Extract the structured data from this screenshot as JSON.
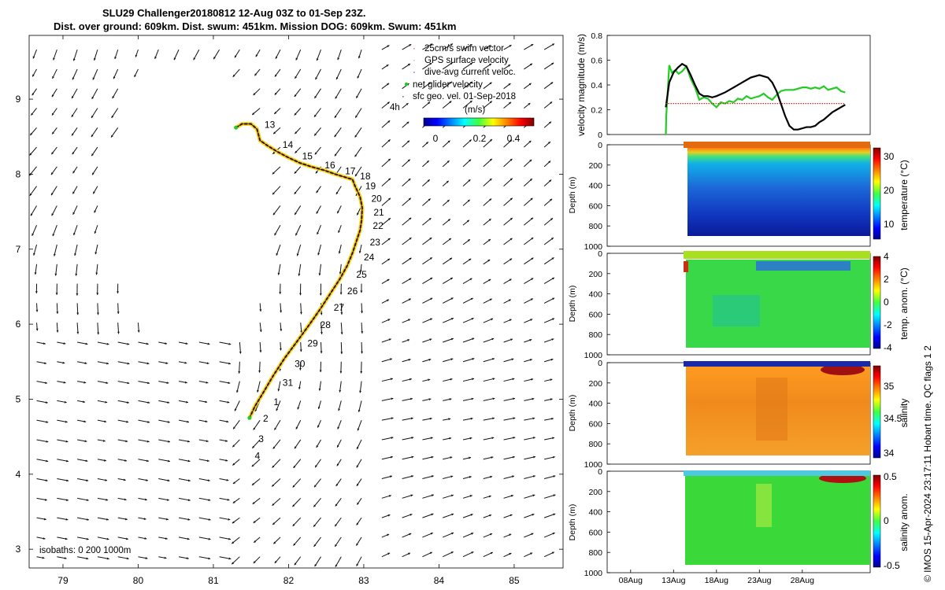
{
  "title": {
    "line1": "SLU29 Challenger20180812 12-Aug 03Z to 01-Sep 23Z.",
    "line2": "Dist. over ground: 609km. Dist. swum: 451km. Mission DOG: 609km. Swum: 451km"
  },
  "side_label": "© IMOS 15-Apr-2024 23:17:11 Hobart time. QC flags 1  2",
  "chart_data": [
    {
      "type": "scatter",
      "name": "track-map",
      "x_ticks": [
        "79",
        "80",
        "81",
        "82",
        "83",
        "84",
        "85"
      ],
      "y_ticks": [
        "3",
        "4",
        "5",
        "6",
        "7",
        "8",
        "9"
      ],
      "xlim": [
        78.55,
        85.65
      ],
      "ylim": [
        2.75,
        9.85
      ],
      "legend": [
        {
          "label": "25cm/s swim vector",
          "color": "#d62728"
        },
        {
          "label": "GPS surface velocity",
          "color": "#c080c0"
        },
        {
          "label": "dive-avg current veloc.",
          "color": "#1f1fb0"
        },
        {
          "label": "net glider velocity",
          "color": "#22cc22"
        },
        {
          "label": "sfc geo. vel. 01-Sep-2018",
          "color": "#000000"
        }
      ],
      "arrow_scale_label": "4h",
      "colorbar": {
        "label": "(m/s)",
        "ticks": [
          "0",
          "0.2",
          "0.4"
        ],
        "range": [
          0,
          0.5
        ]
      },
      "isobaths_label": "isobaths: 0   200  1000m",
      "track": [
        [
          81.3,
          8.62
        ],
        [
          81.38,
          8.67
        ],
        [
          81.5,
          8.67
        ],
        [
          81.58,
          8.6
        ],
        [
          81.62,
          8.45
        ],
        [
          81.72,
          8.38
        ],
        [
          81.85,
          8.3
        ],
        [
          82.0,
          8.22
        ],
        [
          82.15,
          8.15
        ],
        [
          82.3,
          8.1
        ],
        [
          82.48,
          8.05
        ],
        [
          82.62,
          8.0
        ],
        [
          82.75,
          7.96
        ],
        [
          82.85,
          7.93
        ],
        [
          82.88,
          7.85
        ],
        [
          82.95,
          7.7
        ],
        [
          82.98,
          7.55
        ],
        [
          82.97,
          7.38
        ],
        [
          82.95,
          7.25
        ],
        [
          82.9,
          7.1
        ],
        [
          82.85,
          6.95
        ],
        [
          82.78,
          6.78
        ],
        [
          82.68,
          6.6
        ],
        [
          82.55,
          6.4
        ],
        [
          82.42,
          6.2
        ],
        [
          82.28,
          6.0
        ],
        [
          82.12,
          5.78
        ],
        [
          81.95,
          5.55
        ],
        [
          81.8,
          5.32
        ],
        [
          81.67,
          5.1
        ],
        [
          81.55,
          4.9
        ],
        [
          81.48,
          4.75
        ]
      ],
      "day_labels": [
        {
          "t": "13",
          "lon": 81.68,
          "lat": 8.62
        },
        {
          "t": "14",
          "lon": 81.92,
          "lat": 8.35
        },
        {
          "t": "15",
          "lon": 82.18,
          "lat": 8.2
        },
        {
          "t": "16",
          "lon": 82.48,
          "lat": 8.08
        },
        {
          "t": "17",
          "lon": 82.75,
          "lat": 8.0
        },
        {
          "t": "18",
          "lon": 82.95,
          "lat": 7.93
        },
        {
          "t": "19",
          "lon": 83.02,
          "lat": 7.8
        },
        {
          "t": "20",
          "lon": 83.1,
          "lat": 7.63
        },
        {
          "t": "21",
          "lon": 83.13,
          "lat": 7.45
        },
        {
          "t": "22",
          "lon": 83.12,
          "lat": 7.27
        },
        {
          "t": "23",
          "lon": 83.08,
          "lat": 7.05
        },
        {
          "t": "24",
          "lon": 83.0,
          "lat": 6.85
        },
        {
          "t": "25",
          "lon": 82.9,
          "lat": 6.62
        },
        {
          "t": "26",
          "lon": 82.78,
          "lat": 6.4
        },
        {
          "t": "27",
          "lon": 82.6,
          "lat": 6.18
        },
        {
          "t": "28",
          "lon": 82.42,
          "lat": 5.95
        },
        {
          "t": "29",
          "lon": 82.25,
          "lat": 5.7
        },
        {
          "t": "30",
          "lon": 82.08,
          "lat": 5.43
        },
        {
          "t": "31",
          "lon": 81.92,
          "lat": 5.18
        },
        {
          "t": "1",
          "lon": 81.8,
          "lat": 4.92
        },
        {
          "t": "2",
          "lon": 81.66,
          "lat": 4.7
        },
        {
          "t": "3",
          "lon": 81.6,
          "lat": 4.43
        },
        {
          "t": "4",
          "lon": 81.55,
          "lat": 4.2
        }
      ]
    },
    {
      "type": "line",
      "name": "velocity-magnitude",
      "ylabel": "velocity magnitude (m/s)",
      "ylim": [
        0,
        0.8
      ],
      "y_ticks": [
        "0",
        "0.2",
        "0.4",
        "0.6",
        "0.8"
      ],
      "series": [
        {
          "name": "net glider velocity",
          "color": "#22cc22",
          "x": [
            12.1,
            12.15,
            12.5,
            12.8,
            13.2,
            13.6,
            14.0,
            14.5,
            15.0,
            15.5,
            16.0,
            16.5,
            17.0,
            17.5,
            18.0,
            18.5,
            19.0,
            19.5,
            20.0,
            20.5,
            21.0,
            21.5,
            22.0,
            22.5,
            23.0,
            23.5,
            24.0,
            24.5,
            25.0,
            25.5,
            26.0,
            26.5,
            27.0,
            27.5,
            28.0,
            28.5,
            29.0,
            29.5,
            30.0,
            30.5,
            31.0,
            31.5,
            32.0,
            32.5,
            33.0
          ],
          "y": [
            0.0,
            0.15,
            0.56,
            0.5,
            0.52,
            0.49,
            0.51,
            0.55,
            0.45,
            0.38,
            0.28,
            0.3,
            0.29,
            0.25,
            0.22,
            0.26,
            0.25,
            0.27,
            0.26,
            0.29,
            0.28,
            0.31,
            0.29,
            0.3,
            0.31,
            0.33,
            0.3,
            0.28,
            0.32,
            0.35,
            0.36,
            0.36,
            0.36,
            0.37,
            0.38,
            0.38,
            0.37,
            0.38,
            0.37,
            0.39,
            0.36,
            0.37,
            0.38,
            0.35,
            0.34
          ]
        },
        {
          "name": "sfc geo. vel.",
          "color": "#000000",
          "x": [
            12.1,
            12.5,
            13.0,
            13.5,
            14.0,
            14.5,
            15.0,
            15.5,
            16.0,
            16.5,
            17.0,
            17.5,
            18.0,
            19.0,
            20.0,
            21.0,
            22.0,
            23.0,
            24.0,
            24.5,
            25.0,
            25.5,
            26.0,
            26.5,
            27.0,
            27.5,
            28.0,
            28.5,
            29.0,
            29.5,
            30.0,
            30.5,
            31.0,
            31.5,
            32.0,
            32.5,
            33.0
          ],
          "y": [
            0.22,
            0.42,
            0.5,
            0.54,
            0.57,
            0.55,
            0.48,
            0.4,
            0.33,
            0.31,
            0.31,
            0.3,
            0.31,
            0.34,
            0.38,
            0.42,
            0.46,
            0.48,
            0.46,
            0.42,
            0.35,
            0.25,
            0.15,
            0.07,
            0.04,
            0.04,
            0.05,
            0.06,
            0.06,
            0.07,
            0.1,
            0.12,
            0.15,
            0.18,
            0.2,
            0.22,
            0.24
          ]
        },
        {
          "name": "25cm/s swim",
          "color": "#d62728",
          "x": [
            12.1,
            33.0
          ],
          "y": [
            0.25,
            0.25
          ]
        }
      ]
    },
    {
      "type": "heatmap",
      "name": "temperature",
      "ylabel": "Depth (m)",
      "clabel": "temperature (°C)",
      "ylim": [
        1000,
        0
      ],
      "y_ticks": [
        "0",
        "200",
        "400",
        "600",
        "800",
        "1000"
      ],
      "cbar_ticks": [
        "10",
        "20",
        "30"
      ],
      "crange": [
        5,
        32
      ]
    },
    {
      "type": "heatmap",
      "name": "temp-anomaly",
      "ylabel": "Depth (m)",
      "clabel": "temp. anom. (°C)",
      "ylim": [
        1000,
        0
      ],
      "y_ticks": [
        "0",
        "200",
        "400",
        "600",
        "800",
        "1000"
      ],
      "cbar_ticks": [
        "4",
        "2",
        "0",
        "-2",
        "-4"
      ],
      "crange": [
        -4,
        4
      ]
    },
    {
      "type": "heatmap",
      "name": "salinity",
      "ylabel": "Depth (m)",
      "clabel": "salinity",
      "ylim": [
        1000,
        0
      ],
      "y_ticks": [
        "0",
        "200",
        "400",
        "600",
        "800",
        "1000"
      ],
      "cbar_ticks": [
        "35",
        "34.5",
        "34"
      ],
      "crange": [
        33.9,
        35.2
      ]
    },
    {
      "type": "heatmap",
      "name": "salinity-anomaly",
      "ylabel": "Depth (m)",
      "clabel": "salinity anom.",
      "ylim": [
        1000,
        0
      ],
      "y_ticks": [
        "0",
        "200",
        "400",
        "600",
        "800",
        "1000"
      ],
      "cbar_ticks": [
        "0.5",
        "0",
        "-0.5"
      ],
      "crange": [
        -0.5,
        0.5
      ],
      "x_ticks": [
        "08Aug",
        "13Aug",
        "18Aug",
        "23Aug",
        "28Aug"
      ]
    }
  ]
}
